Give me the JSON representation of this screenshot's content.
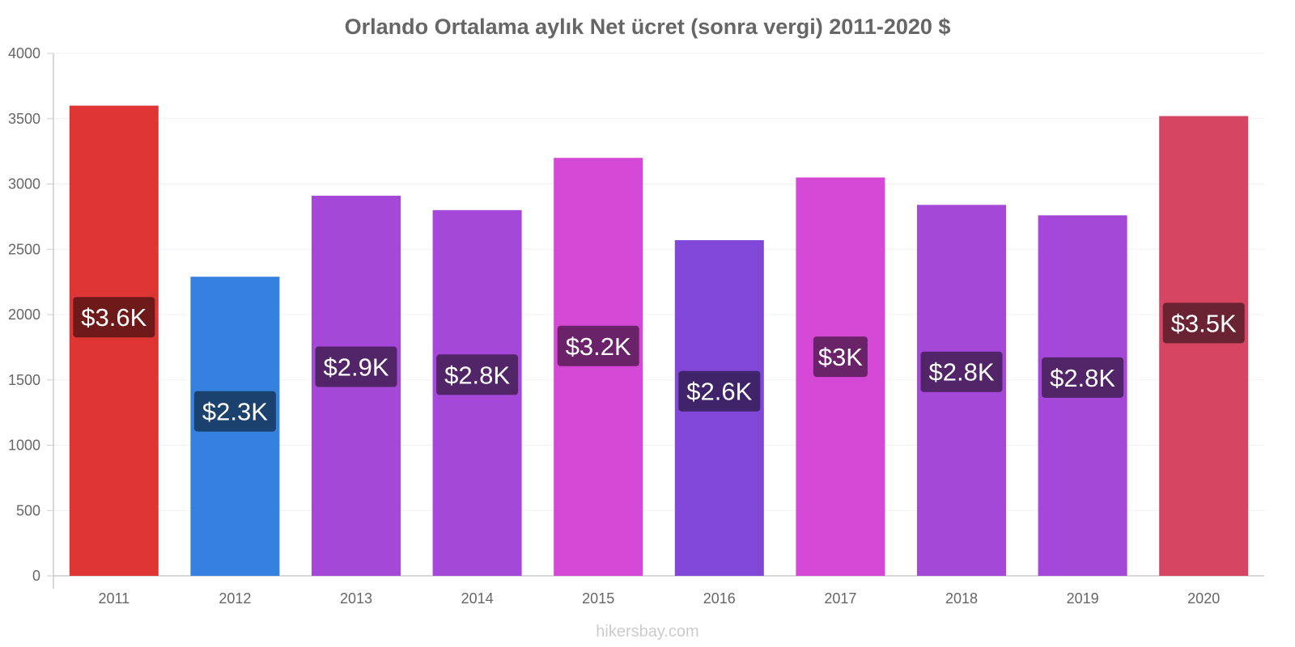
{
  "chart_data": {
    "type": "bar",
    "title": "Orlando Ortalama aylık Net ücret (sonra vergi) 2011-2020 $",
    "xlabel": "",
    "ylabel": "",
    "ylim": [
      0,
      4000
    ],
    "yticks": [
      0,
      500,
      1000,
      1500,
      2000,
      2500,
      3000,
      3500,
      4000
    ],
    "grid": true,
    "categories": [
      "2011",
      "2012",
      "2013",
      "2014",
      "2015",
      "2016",
      "2017",
      "2018",
      "2019",
      "2020"
    ],
    "values": [
      3600,
      2290,
      2910,
      2800,
      3200,
      2570,
      3050,
      2840,
      2760,
      3520
    ],
    "data_labels": [
      "$3.6K",
      "$2.3K",
      "$2.9K",
      "$2.8K",
      "$3.2K",
      "$2.6K",
      "$3K",
      "$2.8K",
      "$2.8K",
      "$3.5K"
    ],
    "bar_colors": [
      "#e03535",
      "#3581e0",
      "#a547d8",
      "#a547d8",
      "#d547d5",
      "#8047d8",
      "#d547d5",
      "#a547d8",
      "#a547d8",
      "#d64663"
    ],
    "label_bg_colors": [
      "#6e1a1a",
      "#1b416e",
      "#522468",
      "#522468",
      "#6a2369",
      "#402469",
      "#6a2369",
      "#522468",
      "#522468",
      "#6b2232"
    ]
  },
  "watermark": "hikersbay.com"
}
